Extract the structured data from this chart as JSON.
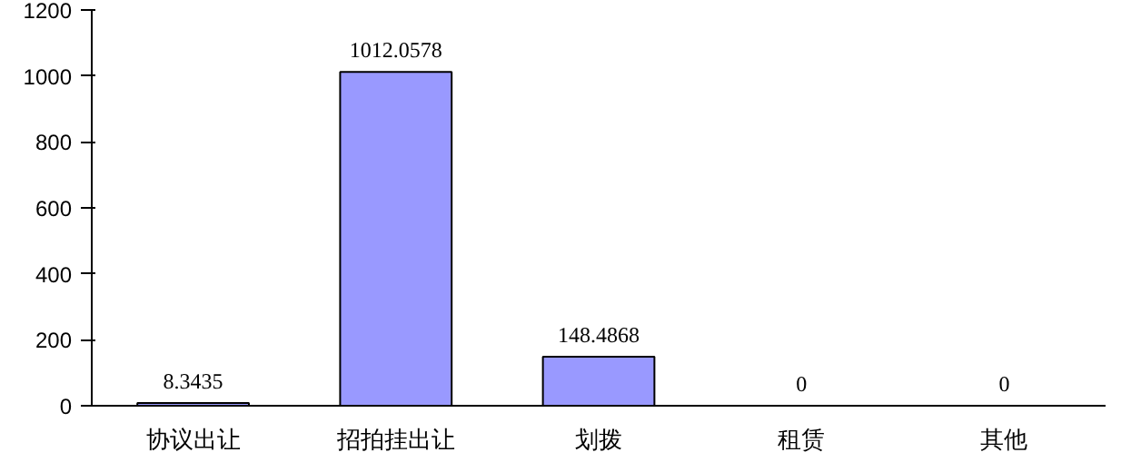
{
  "chart_data": {
    "type": "bar",
    "categories": [
      "协议出让",
      "招拍挂出让",
      "划拨",
      "租赁",
      "其他"
    ],
    "values": [
      8.3435,
      1012.0578,
      148.4868,
      0,
      0
    ],
    "color": "#9999ff",
    "ylim": [
      0,
      1200
    ],
    "yticks": [
      0,
      200,
      400,
      600,
      800,
      1000,
      1200
    ],
    "grid": false,
    "data_labels": true
  }
}
